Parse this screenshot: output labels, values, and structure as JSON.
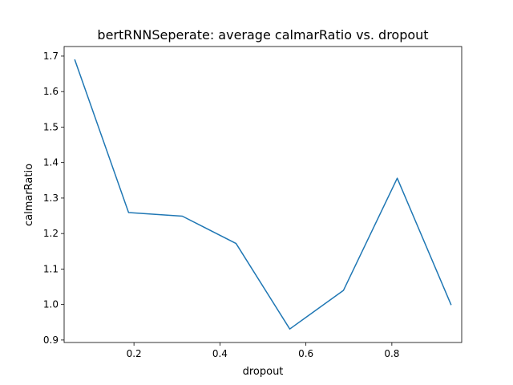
{
  "chart_data": {
    "type": "line",
    "title": "bertRNNSeperate: average calmarRatio vs. dropout",
    "xlabel": "dropout",
    "ylabel": "calmarRatio",
    "xlim": [
      0.0375,
      0.9625
    ],
    "ylim": [
      0.893,
      1.727
    ],
    "xticks": [
      0.2,
      0.4,
      0.6,
      0.8
    ],
    "xtick_labels": [
      "0.2",
      "0.4",
      "0.6",
      "0.8"
    ],
    "yticks": [
      0.9,
      1.0,
      1.1,
      1.2,
      1.3,
      1.4,
      1.5,
      1.6,
      1.7
    ],
    "ytick_labels": [
      "0.9",
      "1.0",
      "1.1",
      "1.2",
      "1.3",
      "1.4",
      "1.5",
      "1.6",
      "1.7"
    ],
    "grid": false,
    "series": [
      {
        "color": "#1f77b4",
        "x": [
          0.0625,
          0.1875,
          0.3125,
          0.4375,
          0.5625,
          0.6875,
          0.8125,
          0.9375
        ],
        "y": [
          1.689,
          1.259,
          1.249,
          1.172,
          0.931,
          1.04,
          1.356,
          1.0
        ]
      }
    ]
  }
}
